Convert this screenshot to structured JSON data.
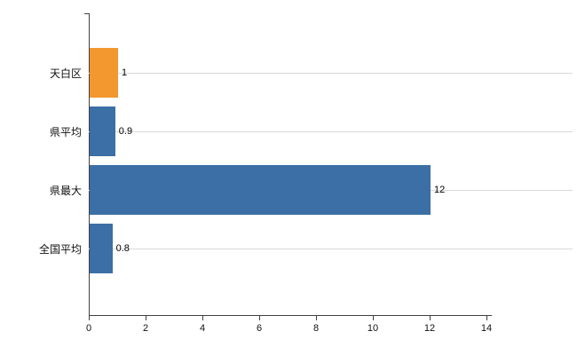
{
  "chart_data": {
    "type": "bar",
    "orientation": "horizontal",
    "title": "",
    "xlabel": "",
    "ylabel": "",
    "categories": [
      "天白区",
      "県平均",
      "県最大",
      "全国平均"
    ],
    "values": [
      1,
      0.9,
      12,
      0.8
    ],
    "value_labels": [
      "1",
      "0.9",
      "12",
      "0.8"
    ],
    "bar_colors": [
      "#F2982E",
      "#3C6FA5",
      "#3C6FA5",
      "#3C6FA5"
    ],
    "xlim": [
      0,
      14
    ],
    "xticks": [
      0,
      2,
      4,
      6,
      8,
      10,
      12,
      14
    ],
    "xtick_labels": [
      "0",
      "2",
      "4",
      "6",
      "8",
      "10",
      "12",
      "14"
    ],
    "grid": "horizontal-category-gridlines",
    "legend_position": "none"
  },
  "colors": {
    "background": "#ffffff",
    "axis": "#404040",
    "gridline": "#d9d9d9",
    "text": "#111111"
  }
}
